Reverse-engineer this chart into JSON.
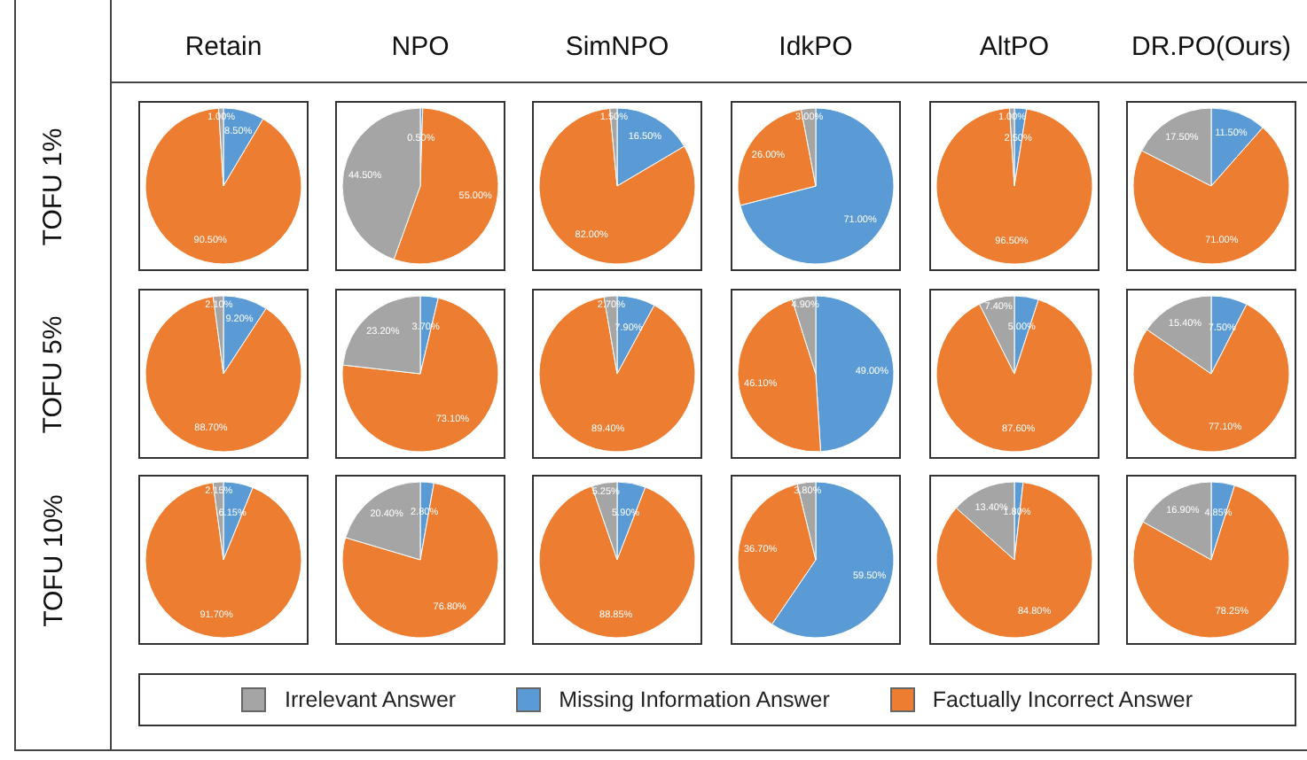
{
  "chart_data": [
    {
      "type": "pie",
      "title": "Retain",
      "ylabel": "TOFU 1%",
      "legend": "bottom",
      "categories": [
        "Irrelevant Answer",
        "Missing Information Answer",
        "Factually Incorrect Answer"
      ],
      "values": [
        1.0,
        8.5,
        90.5
      ],
      "value_labels": [
        "1.00%",
        "8.50%",
        "90.50%"
      ],
      "colors": [
        "#a5a5a5",
        "#5b9bd5",
        "#ed7d31"
      ]
    },
    {
      "type": "pie",
      "title": "NPO",
      "categories": [
        null,
        null,
        null
      ],
      "values": [
        44.5,
        0.5,
        55.0
      ],
      "value_labels": [
        "44.50%",
        "0.50%",
        "55.00%"
      ],
      "colors": [
        "#a5a5a5",
        "#5b9bd5",
        "#ed7d31"
      ]
    },
    {
      "type": "pie",
      "title": "SimNPO",
      "categories": [
        null,
        null,
        null
      ],
      "values": [
        1.5,
        16.5,
        82.0
      ],
      "value_labels": [
        "1.50%",
        "16.50%",
        "82.00%"
      ],
      "colors": [
        "#a5a5a5",
        "#5b9bd5",
        "#ed7d31"
      ]
    },
    {
      "type": "pie",
      "title": "IdkPO",
      "categories": [
        null,
        null,
        null
      ],
      "values": [
        3.0,
        71.0,
        26.0
      ],
      "value_labels": [
        "3.00%",
        "71.00%",
        "26.00%"
      ],
      "colors": [
        "#a5a5a5",
        "#5b9bd5",
        "#ed7d31"
      ]
    },
    {
      "type": "pie",
      "title": "AltPO",
      "categories": [
        null,
        null,
        null
      ],
      "values": [
        1.0,
        2.5,
        96.5
      ],
      "value_labels": [
        "1.00%",
        "2.50%",
        "96.50%"
      ],
      "colors": [
        "#a5a5a5",
        "#5b9bd5",
        "#ed7d31"
      ]
    },
    {
      "type": "pie",
      "title": "DR.PO(Ours)",
      "categories": [
        null,
        null,
        null
      ],
      "values": [
        17.5,
        11.5,
        71.0
      ],
      "value_labels": [
        "17.50%",
        "11.50%",
        "71.00%"
      ],
      "colors": [
        "#a5a5a5",
        "#5b9bd5",
        "#ed7d31"
      ]
    },
    {
      "type": "pie",
      "ylabel": "TOFU 5%",
      "categories": [
        null,
        null,
        null
      ],
      "values": [
        2.1,
        9.2,
        88.7
      ],
      "value_labels": [
        "2.10%",
        "9.20%",
        "88.70%"
      ],
      "colors": [
        "#a5a5a5",
        "#5b9bd5",
        "#ed7d31"
      ]
    },
    {
      "type": "pie",
      "categories": [
        null,
        null,
        null
      ],
      "values": [
        23.2,
        3.7,
        73.1
      ],
      "value_labels": [
        "23.20%",
        "3.70%",
        "73.10%"
      ],
      "colors": [
        "#a5a5a5",
        "#5b9bd5",
        "#ed7d31"
      ]
    },
    {
      "type": "pie",
      "categories": [
        null,
        null,
        null
      ],
      "values": [
        2.7,
        7.9,
        89.4
      ],
      "value_labels": [
        "2.70%",
        "7.90%",
        "89.40%"
      ],
      "colors": [
        "#a5a5a5",
        "#5b9bd5",
        "#ed7d31"
      ]
    },
    {
      "type": "pie",
      "categories": [
        null,
        null,
        null
      ],
      "values": [
        4.9,
        49.0,
        46.1
      ],
      "value_labels": [
        "4.90%",
        "49.00%",
        "46.10%"
      ],
      "colors": [
        "#a5a5a5",
        "#5b9bd5",
        "#ed7d31"
      ]
    },
    {
      "type": "pie",
      "categories": [
        null,
        null,
        null
      ],
      "values": [
        7.4,
        5.0,
        87.6
      ],
      "value_labels": [
        "7.40%",
        "5.00%",
        "87.60%"
      ],
      "colors": [
        "#a5a5a5",
        "#5b9bd5",
        "#ed7d31"
      ]
    },
    {
      "type": "pie",
      "categories": [
        null,
        null,
        null
      ],
      "values": [
        15.4,
        7.5,
        77.1
      ],
      "value_labels": [
        "15.40%",
        "7.50%",
        "77.10%"
      ],
      "colors": [
        "#a5a5a5",
        "#5b9bd5",
        "#ed7d31"
      ]
    },
    {
      "type": "pie",
      "ylabel": "TOFU 10%",
      "categories": [
        null,
        null,
        null
      ],
      "values": [
        2.15,
        6.15,
        91.7
      ],
      "value_labels": [
        "2.15%",
        "6.15%",
        "91.70%"
      ],
      "colors": [
        "#a5a5a5",
        "#5b9bd5",
        "#ed7d31"
      ]
    },
    {
      "type": "pie",
      "categories": [
        null,
        null,
        null
      ],
      "values": [
        20.4,
        2.8,
        76.8
      ],
      "value_labels": [
        "20.40%",
        "2.80%",
        "76.80%"
      ],
      "colors": [
        "#a5a5a5",
        "#5b9bd5",
        "#ed7d31"
      ]
    },
    {
      "type": "pie",
      "categories": [
        null,
        null,
        null
      ],
      "values": [
        5.25,
        5.9,
        88.85
      ],
      "value_labels": [
        "5.25%",
        "5.90%",
        "88.85%"
      ],
      "colors": [
        "#a5a5a5",
        "#5b9bd5",
        "#ed7d31"
      ]
    },
    {
      "type": "pie",
      "categories": [
        null,
        null,
        null
      ],
      "values": [
        3.8,
        59.5,
        36.7
      ],
      "value_labels": [
        "3.80%",
        "59.50%",
        "36.70%"
      ],
      "colors": [
        "#a5a5a5",
        "#5b9bd5",
        "#ed7d31"
      ]
    },
    {
      "type": "pie",
      "categories": [
        null,
        null,
        null
      ],
      "values": [
        13.4,
        1.8,
        84.8
      ],
      "value_labels": [
        "13.40%",
        "1.80%",
        "84.80%"
      ],
      "colors": [
        "#a5a5a5",
        "#5b9bd5",
        "#ed7d31"
      ]
    },
    {
      "type": "pie",
      "categories": [
        null,
        null,
        null
      ],
      "values": [
        16.9,
        4.85,
        78.25
      ],
      "value_labels": [
        "16.90%",
        "4.85%",
        "78.25%"
      ],
      "colors": [
        "#a5a5a5",
        "#5b9bd5",
        "#ed7d31"
      ]
    }
  ]
}
